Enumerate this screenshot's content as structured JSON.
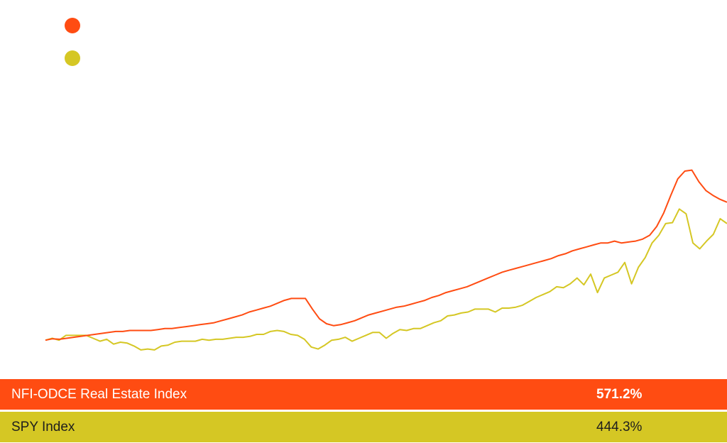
{
  "colors": {
    "nfi": "#ff4c12",
    "spy": "#d5c724"
  },
  "legend": [
    {
      "icon": "legend-dot",
      "color": "#ff4c12"
    },
    {
      "icon": "legend-dot",
      "color": "#d5c724"
    }
  ],
  "summary": {
    "rows": [
      {
        "label": "NFI-ODCE Real Estate Index",
        "value": "571.2%"
      },
      {
        "label": "SPY Index",
        "value": "444.3%"
      }
    ]
  },
  "chart_data": {
    "type": "line",
    "grid": false,
    "ylim": [
      -80,
      700
    ],
    "series": [
      {
        "name": "NFI-ODCE Real Estate Index",
        "color": "#ff4c12",
        "values": [
          0,
          3,
          2,
          4,
          6,
          8,
          10,
          12,
          14,
          16,
          18,
          18,
          20,
          20,
          20,
          20,
          22,
          24,
          24,
          26,
          28,
          30,
          32,
          34,
          36,
          40,
          44,
          48,
          52,
          58,
          62,
          66,
          70,
          76,
          82,
          86,
          86,
          86,
          64,
          44,
          34,
          30,
          32,
          36,
          40,
          46,
          52,
          56,
          60,
          64,
          68,
          70,
          74,
          78,
          82,
          88,
          92,
          98,
          102,
          106,
          110,
          116,
          122,
          128,
          134,
          140,
          144,
          148,
          152,
          156,
          160,
          164,
          168,
          174,
          178,
          184,
          188,
          192,
          196,
          200,
          200,
          204,
          200,
          202,
          204,
          208,
          216,
          234,
          262,
          298,
          332,
          348,
          350,
          326,
          308,
          298,
          290,
          284
        ]
      },
      {
        "name": "SPY Index",
        "color": "#d5c724",
        "values": [
          0,
          4,
          0,
          10,
          10,
          10,
          10,
          4,
          -2,
          2,
          -8,
          -4,
          -6,
          -12,
          -20,
          -18,
          -20,
          -12,
          -10,
          -4,
          -2,
          -2,
          -2,
          2,
          0,
          2,
          2,
          4,
          6,
          6,
          8,
          12,
          12,
          18,
          20,
          18,
          12,
          10,
          2,
          -14,
          -18,
          -10,
          0,
          2,
          6,
          -2,
          4,
          10,
          16,
          16,
          4,
          14,
          22,
          20,
          24,
          24,
          30,
          36,
          40,
          50,
          52,
          56,
          58,
          64,
          64,
          64,
          58,
          66,
          66,
          68,
          72,
          80,
          88,
          94,
          100,
          110,
          108,
          116,
          128,
          114,
          136,
          98,
          128,
          134,
          140,
          160,
          116,
          150,
          170,
          200,
          216,
          240,
          242,
          270,
          260,
          200,
          188,
          204,
          218,
          250,
          240
        ]
      }
    ]
  }
}
